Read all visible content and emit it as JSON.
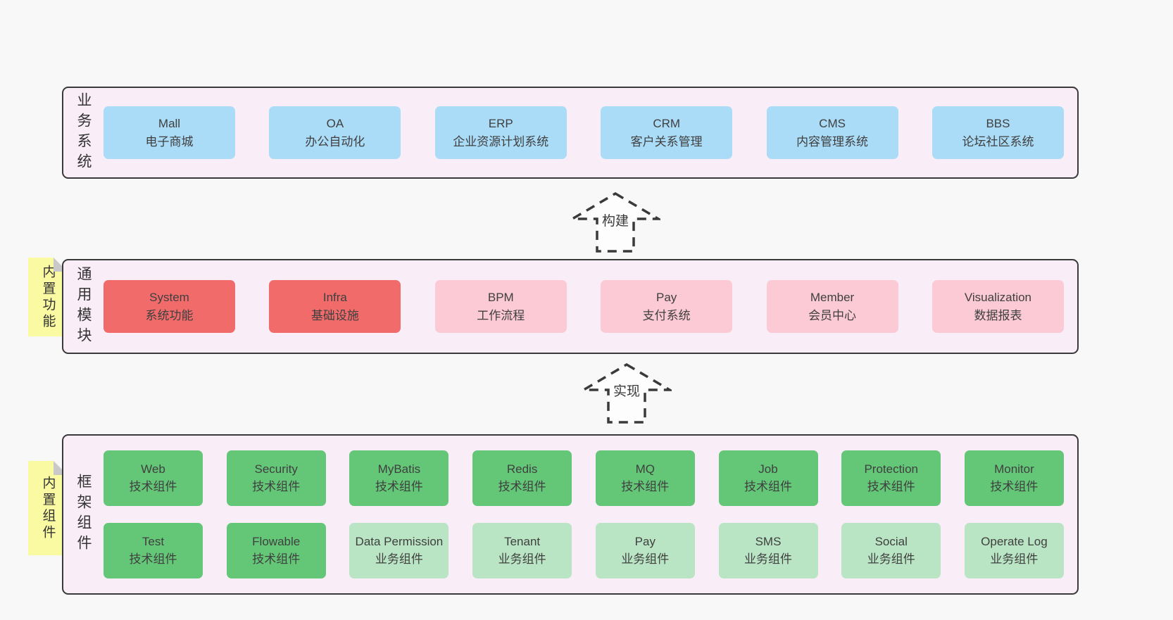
{
  "colors": {
    "background": "#f8f8f8",
    "panel_background": "#f9edf7",
    "panel_border": "#3a3a3a",
    "business_box": "#abdcf7",
    "core_module_box": "#f16b6b",
    "optional_module_box": "#fbcad4",
    "tech_component_box": "#64c778",
    "biz_component_box": "#bae5c4",
    "sticky_tab": "#fafaa3",
    "tab_fold": "#c9c9c9",
    "text": "#3d3d3d"
  },
  "arrows": [
    {
      "label": "构建"
    },
    {
      "label": "实现"
    }
  ],
  "panels": {
    "business": {
      "label": "业务系统",
      "boxes": [
        {
          "name": "Mall",
          "subtitle": "电子商城",
          "variant": "blue"
        },
        {
          "name": "OA",
          "subtitle": "办公自动化",
          "variant": "blue"
        },
        {
          "name": "ERP",
          "subtitle": "企业资源计划系统",
          "variant": "blue"
        },
        {
          "name": "CRM",
          "subtitle": "客户关系管理",
          "variant": "blue"
        },
        {
          "name": "CMS",
          "subtitle": "内容管理系统",
          "variant": "blue"
        },
        {
          "name": "BBS",
          "subtitle": "论坛社区系统",
          "variant": "blue"
        }
      ]
    },
    "modules": {
      "label": "通用模块",
      "tab": "内置功能",
      "boxes": [
        {
          "name": "System",
          "subtitle": "系统功能",
          "variant": "red"
        },
        {
          "name": "Infra",
          "subtitle": "基础设施",
          "variant": "red"
        },
        {
          "name": "BPM",
          "subtitle": "工作流程",
          "variant": "pink"
        },
        {
          "name": "Pay",
          "subtitle": "支付系统",
          "variant": "pink"
        },
        {
          "name": "Member",
          "subtitle": "会员中心",
          "variant": "pink"
        },
        {
          "name": "Visualization",
          "subtitle": "数据报表",
          "variant": "pink"
        }
      ]
    },
    "components": {
      "label": "框架组件",
      "tab": "内置组件",
      "rows": [
        [
          {
            "name": "Web",
            "subtitle": "技术组件",
            "variant": "green"
          },
          {
            "name": "Security",
            "subtitle": "技术组件",
            "variant": "green"
          },
          {
            "name": "MyBatis",
            "subtitle": "技术组件",
            "variant": "green"
          },
          {
            "name": "Redis",
            "subtitle": "技术组件",
            "variant": "green"
          },
          {
            "name": "MQ",
            "subtitle": "技术组件",
            "variant": "green"
          },
          {
            "name": "Job",
            "subtitle": "技术组件",
            "variant": "green"
          },
          {
            "name": "Protection",
            "subtitle": "技术组件",
            "variant": "green"
          },
          {
            "name": "Monitor",
            "subtitle": "技术组件",
            "variant": "green"
          }
        ],
        [
          {
            "name": "Test",
            "subtitle": "技术组件",
            "variant": "green"
          },
          {
            "name": "Flowable",
            "subtitle": "技术组件",
            "variant": "green"
          },
          {
            "name": "Data Permission",
            "subtitle": "业务组件",
            "variant": "lightgreen"
          },
          {
            "name": "Tenant",
            "subtitle": "业务组件",
            "variant": "lightgreen"
          },
          {
            "name": "Pay",
            "subtitle": "业务组件",
            "variant": "lightgreen"
          },
          {
            "name": "SMS",
            "subtitle": "业务组件",
            "variant": "lightgreen"
          },
          {
            "name": "Social",
            "subtitle": "业务组件",
            "variant": "lightgreen"
          },
          {
            "name": "Operate Log",
            "subtitle": "业务组件",
            "variant": "lightgreen"
          }
        ]
      ]
    }
  }
}
